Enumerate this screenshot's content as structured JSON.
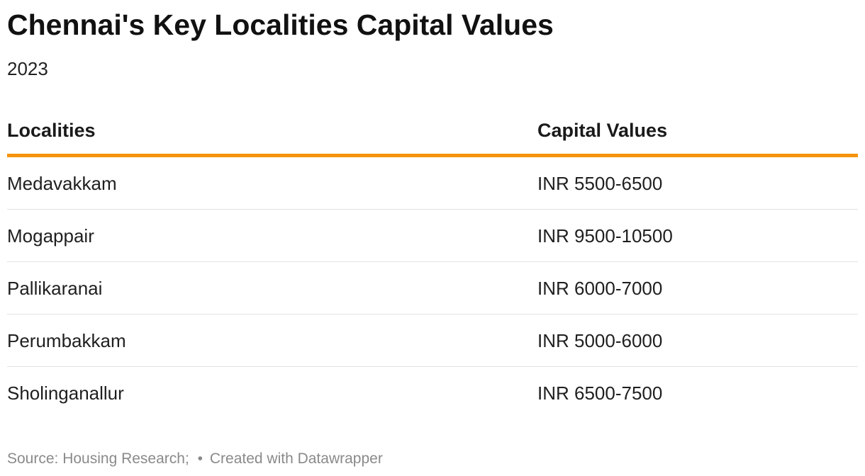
{
  "title": "Chennai's Key Localities Capital Values",
  "subtitle": "2023",
  "chart_data": {
    "type": "table",
    "title": "Chennai's Key Localities Capital Values",
    "subtitle": "2023",
    "columns": [
      "Localities",
      "Capital Values"
    ],
    "rows": [
      [
        "Medavakkam",
        "INR 5500-6500"
      ],
      [
        "Mogappair",
        "INR 9500-10500"
      ],
      [
        "Pallikaranai",
        "INR 6000-7000"
      ],
      [
        "Perumbakkam",
        "INR 5000-6000"
      ],
      [
        "Sholinganallur",
        "INR 6500-7500"
      ]
    ],
    "header_rule_color": "#f5930e"
  },
  "footer": {
    "source": "Source: Housing Research;",
    "separator": "•",
    "credit": "Created with Datawrapper"
  }
}
